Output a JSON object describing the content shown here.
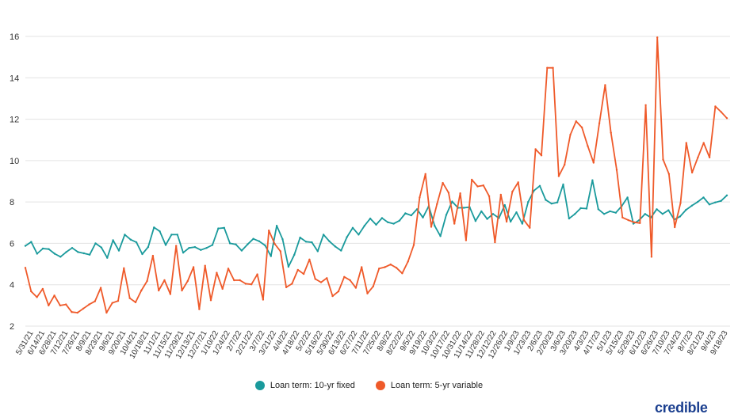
{
  "chart_data": {
    "type": "line",
    "title": "",
    "xlabel": "",
    "ylabel": "",
    "ylim": [
      2,
      16
    ],
    "yticks": [
      2,
      4,
      6,
      8,
      10,
      12,
      14,
      16
    ],
    "grid": true,
    "legend_position": "bottom-center",
    "x_tick_labels": [
      "5/31/21",
      "6/14/21",
      "6/28/21",
      "7/12/21",
      "7/26/21",
      "8/9/21",
      "8/23/21",
      "9/6/21",
      "9/20/21",
      "10/4/21",
      "10/18/21",
      "11/1/21",
      "11/15/21",
      "11/29/21",
      "12/13/21",
      "12/27/21",
      "1/10/22",
      "1/24/22",
      "2/7/22",
      "2/21/22",
      "3/7/22",
      "3/21/22",
      "4/4/22",
      "4/18/22",
      "5/2/22",
      "5/16/22",
      "5/30/22",
      "6/13/22",
      "6/27/22",
      "7/11/22",
      "7/25/22",
      "8/8/22",
      "8/22/22",
      "9/5/22",
      "9/19/22",
      "10/3/22",
      "10/17/22",
      "10/31/22",
      "11/14/22",
      "11/28/22",
      "12/12/22",
      "12/26/22",
      "1/9/23",
      "1/23/23",
      "2/6/23",
      "2/20/23",
      "3/6/23",
      "3/20/23",
      "4/3/23",
      "4/17/23",
      "5/1/23",
      "5/15/23",
      "5/29/23",
      "6/12/23",
      "6/26/23",
      "7/10/23",
      "7/24/23",
      "8/7/23",
      "8/21/23",
      "9/4/23",
      "9/18/23"
    ],
    "series": [
      {
        "name": "Loan term: 10-yr fixed",
        "color": "#1a9a9c",
        "values": [
          5.88,
          6.07,
          5.5,
          5.75,
          5.72,
          5.5,
          5.35,
          5.58,
          5.78,
          5.58,
          5.52,
          5.45,
          6.0,
          5.8,
          5.3,
          6.15,
          5.65,
          6.42,
          6.18,
          6.05,
          5.48,
          5.82,
          6.77,
          6.58,
          5.92,
          6.42,
          6.42,
          5.55,
          5.78,
          5.82,
          5.68,
          5.78,
          5.92,
          6.72,
          6.75,
          6.0,
          5.95,
          5.65,
          5.95,
          6.22,
          6.1,
          5.9,
          5.38,
          6.85,
          6.2,
          4.87,
          5.45,
          6.28,
          6.08,
          6.05,
          5.62,
          6.42,
          6.1,
          5.85,
          5.65,
          6.3,
          6.75,
          6.42,
          6.85,
          7.2,
          6.9,
          7.22,
          7.02,
          6.95,
          7.1,
          7.45,
          7.35,
          7.65,
          7.25,
          7.8,
          6.85,
          6.35,
          7.38,
          8.02,
          7.72,
          7.72,
          7.75,
          7.08,
          7.55,
          7.18,
          7.42,
          7.22,
          7.85,
          7.05,
          7.5,
          6.95,
          8.0,
          8.55,
          8.78,
          8.1,
          7.92,
          7.98,
          8.85,
          7.2,
          7.42,
          7.7,
          7.68,
          9.05,
          7.65,
          7.42,
          7.55,
          7.48,
          7.8,
          8.22,
          6.95,
          7.12,
          7.42,
          7.25,
          7.65,
          7.42,
          7.6,
          7.15,
          7.3,
          7.62,
          7.82,
          8.0,
          8.22,
          7.88,
          7.98,
          8.05,
          8.32
        ]
      },
      {
        "name": "Loan term: 5-yr variable",
        "color": "#ef5a2a",
        "values": [
          4.82,
          3.68,
          3.4,
          3.8,
          3.0,
          3.48,
          3.0,
          3.05,
          2.68,
          2.65,
          2.85,
          3.05,
          3.2,
          3.85,
          2.65,
          3.12,
          3.22,
          4.8,
          3.35,
          3.15,
          3.72,
          4.18,
          5.4,
          3.72,
          4.22,
          3.55,
          5.88,
          3.72,
          4.18,
          4.85,
          2.82,
          4.92,
          3.25,
          4.58,
          3.8,
          4.78,
          4.22,
          4.22,
          4.05,
          4.02,
          4.5,
          3.28,
          6.62,
          5.98,
          5.62,
          3.88,
          4.05,
          4.72,
          4.52,
          5.22,
          4.28,
          4.12,
          4.32,
          3.45,
          3.68,
          4.38,
          4.22,
          3.85,
          4.85,
          3.58,
          3.92,
          4.78,
          4.85,
          4.98,
          4.82,
          4.55,
          5.12,
          5.92,
          8.22,
          9.35,
          6.8,
          7.9,
          8.92,
          8.45,
          6.95,
          8.42,
          6.15,
          9.08,
          8.75,
          8.8,
          8.28,
          6.05,
          8.35,
          7.05,
          8.5,
          8.95,
          7.12,
          6.75,
          10.55,
          10.25,
          14.48,
          14.48,
          9.25,
          9.8,
          11.25,
          11.9,
          11.6,
          10.7,
          9.9,
          11.8,
          13.65,
          11.35,
          9.55,
          7.25,
          7.12,
          7.02,
          6.98,
          12.68,
          5.35,
          15.95,
          10.05,
          9.35,
          6.78,
          7.95,
          10.85,
          9.42,
          10.15,
          10.85,
          10.15,
          12.62,
          12.35,
          12.05
        ]
      }
    ]
  },
  "legend": {
    "items": [
      {
        "label": "Loan term: 10-yr fixed",
        "color": "#1a9a9c"
      },
      {
        "label": "Loan term: 5-yr variable",
        "color": "#ef5a2a"
      }
    ]
  },
  "brand": {
    "logo_text": "credible"
  }
}
